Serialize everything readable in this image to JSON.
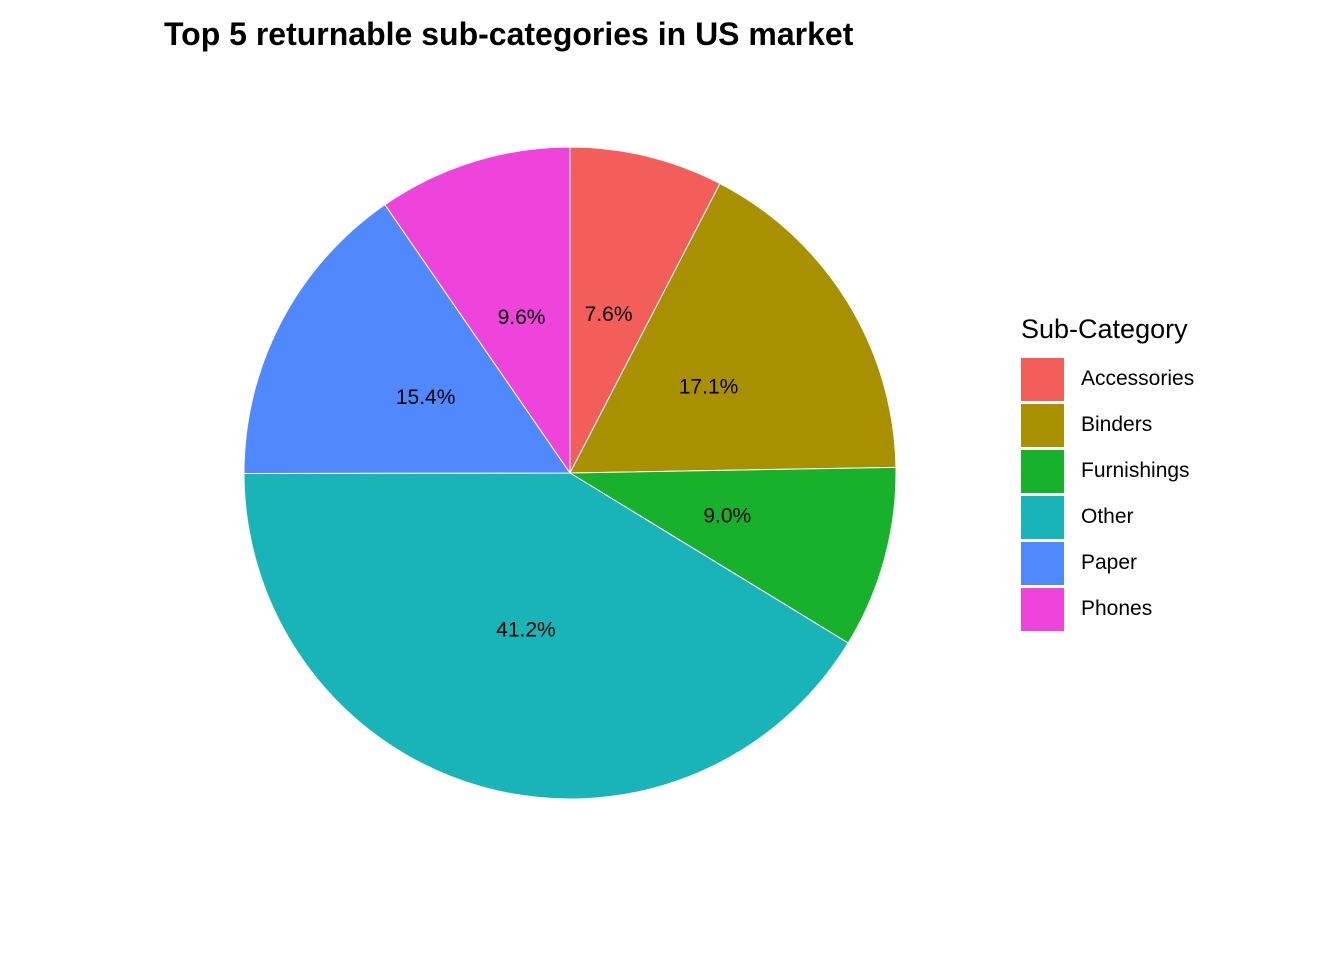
{
  "chart_data": {
    "type": "pie",
    "title": "Top 5 returnable sub-categories in US market",
    "legend_title": "Sub-Category",
    "legend_position": "right",
    "slices": [
      {
        "name": "Accessories",
        "value": 7.6,
        "label": "7.6%",
        "color": "#F35E5B"
      },
      {
        "name": "Binders",
        "value": 17.1,
        "label": "17.1%",
        "color": "#A89000"
      },
      {
        "name": "Furnishings",
        "value": 9.0,
        "label": "9.0%",
        "color": "#17B12B"
      },
      {
        "name": "Other",
        "value": 41.2,
        "label": "41.2%",
        "color": "#19B4B8"
      },
      {
        "name": "Paper",
        "value": 15.4,
        "label": "15.4%",
        "color": "#5088FF"
      },
      {
        "name": "Phones",
        "value": 9.6,
        "label": "9.6%",
        "color": "#EF44DC"
      }
    ]
  }
}
